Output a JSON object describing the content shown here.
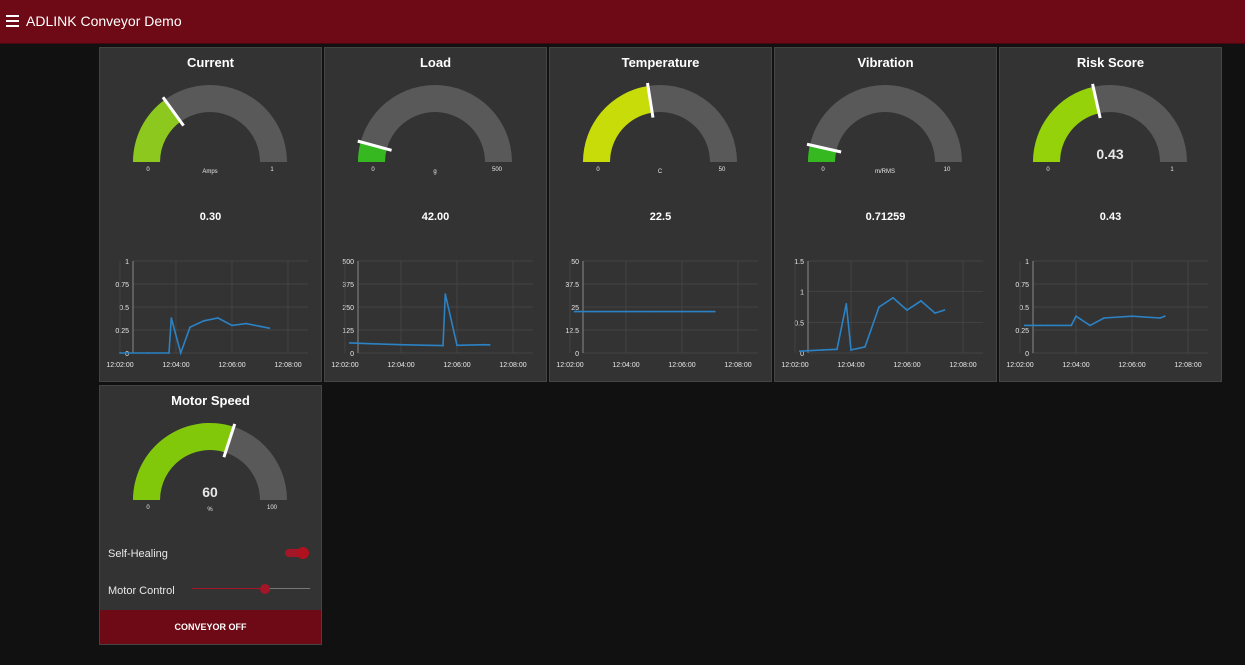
{
  "app": {
    "title": "ADLINK Conveyor Demo"
  },
  "colors": {
    "header": "#6e0a15",
    "card": "#333333",
    "gauge_track": "#595959",
    "gauge_needle": "#ffffff",
    "chart_line": "#2b82c4",
    "accent": "#a31627"
  },
  "cards": [
    {
      "title": "Current",
      "gauge": {
        "min": "0",
        "max": "1",
        "units": "Amps",
        "center": "",
        "value": 0.3,
        "fill": "#8cc81e"
      },
      "value_text": "0.30",
      "chart": {
        "y_ticks": [
          "1",
          "0.75",
          "0.5",
          "0.25",
          "0"
        ],
        "x_ticks": [
          "12:02:00",
          "12:04:00",
          "12:06:00",
          "12:08:00"
        ]
      }
    },
    {
      "title": "Load",
      "gauge": {
        "min": "0",
        "max": "500",
        "units": "g",
        "center": "",
        "value": 42,
        "fill": "#36b820"
      },
      "value_text": "42.00",
      "chart": {
        "y_ticks": [
          "500",
          "375",
          "250",
          "125",
          "0"
        ],
        "x_ticks": [
          "12:02:00",
          "12:04:00",
          "12:06:00",
          "12:08:00"
        ]
      }
    },
    {
      "title": "Temperature",
      "gauge": {
        "min": "0",
        "max": "50",
        "units": "C",
        "center": "",
        "value": 22.5,
        "fill": "#c8dc0a"
      },
      "value_text": "22.5",
      "chart": {
        "y_ticks": [
          "50",
          "37.5",
          "25",
          "12.5",
          "0"
        ],
        "x_ticks": [
          "12:02:00",
          "12:04:00",
          "12:06:00",
          "12:08:00"
        ]
      }
    },
    {
      "title": "Vibration",
      "gauge": {
        "min": "0",
        "max": "10",
        "units": "m/RMS",
        "center": "",
        "value": 0.71259,
        "fill": "#36b820"
      },
      "value_text": "0.71259",
      "chart": {
        "y_ticks": [
          "1.5",
          "1",
          "0.5",
          "0"
        ],
        "x_ticks": [
          "12:02:00",
          "12:04:00",
          "12:06:00",
          "12:08:00"
        ]
      }
    },
    {
      "title": "Risk Score",
      "gauge": {
        "min": "0",
        "max": "1",
        "units": "",
        "center": "0.43",
        "value": 0.43,
        "fill": "#96d20a"
      },
      "value_text": "0.43",
      "chart": {
        "y_ticks": [
          "1",
          "0.75",
          "0.5",
          "0.25",
          "0"
        ],
        "x_ticks": [
          "12:02:00",
          "12:04:00",
          "12:06:00",
          "12:08:00"
        ]
      }
    }
  ],
  "motor": {
    "title": "Motor Speed",
    "gauge": {
      "min": "0",
      "max": "100",
      "units": "%",
      "center": "60",
      "value": 60,
      "fill": "#82c80a"
    },
    "self_healing_label": "Self-Healing",
    "self_healing_on": true,
    "motor_control_label": "Motor Control",
    "motor_control_value": 0.62,
    "button_label": "CONVEYOR OFF"
  },
  "chart_data": [
    {
      "type": "line",
      "title": "Current",
      "x": [
        "12:02:00",
        "12:03:00",
        "12:03:45",
        "12:03:50",
        "12:04:10",
        "12:04:30",
        "12:05:00",
        "12:05:30",
        "12:06:00",
        "12:06:30",
        "12:07:00",
        "12:07:20"
      ],
      "values": [
        0,
        0,
        0,
        0.38,
        0,
        0.28,
        0.35,
        0.38,
        0.3,
        0.32,
        0.29,
        0.27
      ],
      "ylim": [
        0,
        1
      ]
    },
    {
      "type": "line",
      "title": "Load",
      "x": [
        "12:02:10",
        "12:03:00",
        "12:04:00",
        "12:05:00",
        "12:05:30",
        "12:05:35",
        "12:06:00",
        "12:07:00",
        "12:07:10"
      ],
      "values": [
        55,
        50,
        45,
        42,
        40,
        320,
        42,
        45,
        44
      ],
      "ylim": [
        0,
        500
      ]
    },
    {
      "type": "line",
      "title": "Temperature",
      "x": [
        "12:02:10",
        "12:03:00",
        "12:04:00",
        "12:05:00",
        "12:06:00",
        "12:07:00",
        "12:07:10"
      ],
      "values": [
        22.5,
        22.5,
        22.5,
        22.5,
        22.5,
        22.5,
        22.5
      ],
      "ylim": [
        0,
        50
      ]
    },
    {
      "type": "line",
      "title": "Vibration",
      "x": [
        "12:02:10",
        "12:03:00",
        "12:03:30",
        "12:03:50",
        "12:04:00",
        "12:04:30",
        "12:05:00",
        "12:05:30",
        "12:06:00",
        "12:06:30",
        "12:07:00",
        "12:07:20"
      ],
      "values": [
        0.03,
        0.05,
        0.06,
        0.8,
        0.05,
        0.1,
        0.75,
        0.9,
        0.7,
        0.85,
        0.65,
        0.7
      ],
      "ylim": [
        0,
        1.5
      ]
    },
    {
      "type": "line",
      "title": "Risk Score",
      "x": [
        "12:02:10",
        "12:03:00",
        "12:03:50",
        "12:04:00",
        "12:04:30",
        "12:05:00",
        "12:06:00",
        "12:07:00",
        "12:07:10"
      ],
      "values": [
        0.3,
        0.3,
        0.3,
        0.4,
        0.3,
        0.38,
        0.4,
        0.38,
        0.4
      ],
      "ylim": [
        0,
        1
      ]
    }
  ]
}
